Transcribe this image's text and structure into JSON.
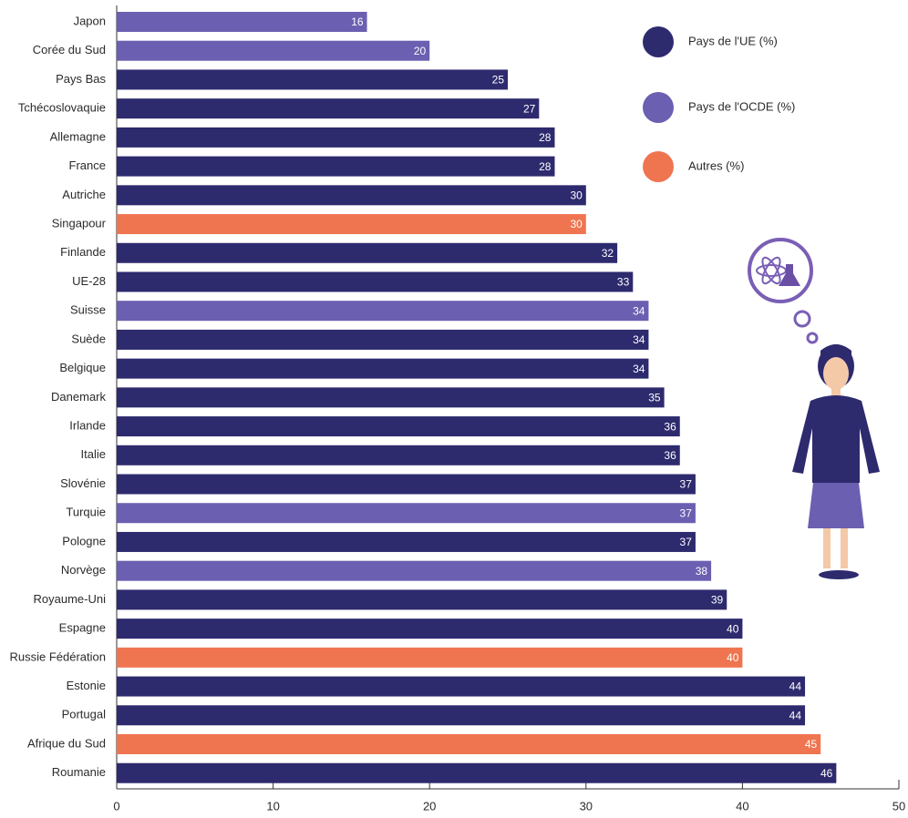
{
  "chart_data": {
    "type": "bar",
    "orientation": "horizontal",
    "categories": [
      "Japon",
      "Corée du Sud",
      "Pays Bas",
      "Tchécoslovaquie",
      "Allemagne",
      "France",
      "Autriche",
      "Singapour",
      "Finlande",
      "UE-28",
      "Suisse",
      "Suède",
      "Belgique",
      "Danemark",
      "Irlande",
      "Italie",
      "Slovénie",
      "Turquie",
      "Pologne",
      "Norvège",
      "Royaume-Uni",
      "Espagne",
      "Russie Fédération",
      "Estonie",
      "Portugal",
      "Afrique du Sud",
      "Roumanie"
    ],
    "series": [
      {
        "name": "Pays de l'UE (%)",
        "color": "#2e2a6e",
        "values": [
          null,
          null,
          25,
          27,
          28,
          28,
          30,
          null,
          32,
          33,
          null,
          34,
          34,
          35,
          36,
          36,
          37,
          null,
          37,
          null,
          39,
          40,
          null,
          44,
          44,
          null,
          46
        ]
      },
      {
        "name": "Pays de l'OCDE (%)",
        "color": "#6a5fb0",
        "values": [
          16,
          20,
          null,
          null,
          null,
          null,
          null,
          null,
          null,
          null,
          34,
          null,
          null,
          null,
          null,
          null,
          null,
          37,
          null,
          38,
          null,
          null,
          null,
          null,
          null,
          null,
          null
        ]
      },
      {
        "name": "Autres (%)",
        "color": "#ef7550",
        "values": [
          null,
          null,
          null,
          null,
          null,
          null,
          null,
          30,
          null,
          null,
          null,
          null,
          null,
          null,
          null,
          null,
          null,
          null,
          null,
          null,
          null,
          null,
          40,
          null,
          null,
          45,
          null
        ]
      }
    ],
    "xlim": [
      0,
      50
    ],
    "xticks": [
      0,
      10,
      20,
      30,
      40,
      50
    ]
  }
}
